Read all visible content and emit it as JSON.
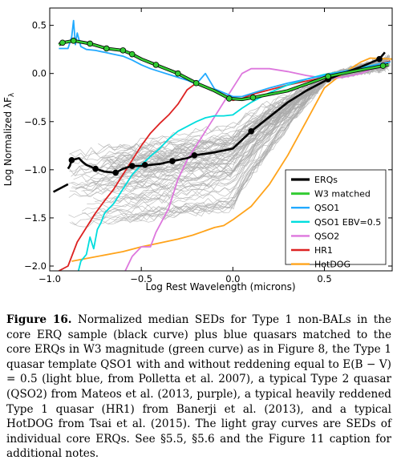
{
  "chart_data": {
    "type": "line",
    "title": "",
    "xlabel": "Log Rest Wavelength (microns)",
    "ylabel": "Log Normalized λF_λ",
    "xlim": [
      -1.0,
      0.87
    ],
    "ylim": [
      -2.05,
      0.68
    ],
    "xticks": [
      -1.0,
      -0.5,
      0.0,
      0.5
    ],
    "xtick_labels": [
      "−1.0",
      "−0.5",
      "0.0",
      "0.5"
    ],
    "yticks": [
      0.5,
      0.0,
      -0.5,
      -1.0,
      -1.5,
      -2.0
    ],
    "ytick_labels": [
      "0.5",
      "0.0",
      "−0.5",
      "−1.0",
      "−1.5",
      "−2.0"
    ],
    "legend_position": "lower-right",
    "grid": false,
    "series": [
      {
        "name": "ERQs",
        "color": "#000000",
        "width": 2.6,
        "markers": [
          [
            -0.88,
            -0.9
          ],
          [
            -0.75,
            -0.99
          ],
          [
            -0.64,
            -1.03
          ],
          [
            -0.55,
            -0.96
          ],
          [
            -0.48,
            -0.95
          ],
          [
            -0.33,
            -0.91
          ],
          [
            -0.21,
            -0.85
          ],
          [
            0.1,
            -0.6
          ],
          [
            0.52,
            -0.06
          ],
          [
            0.8,
            0.15
          ]
        ],
        "x": [
          -0.9,
          -0.89,
          -0.88,
          -0.86,
          -0.84,
          -0.82,
          -0.8,
          -0.75,
          -0.7,
          -0.64,
          -0.6,
          -0.55,
          -0.5,
          -0.45,
          -0.4,
          -0.33,
          -0.25,
          -0.21,
          -0.1,
          0.0,
          0.1,
          0.2,
          0.3,
          0.4,
          0.52,
          0.6,
          0.7,
          0.8,
          0.83
        ],
        "y": [
          -0.99,
          -0.96,
          -0.9,
          -0.89,
          -0.88,
          -0.92,
          -0.95,
          -0.99,
          -1.02,
          -1.03,
          -0.99,
          -0.96,
          -0.96,
          -0.95,
          -0.94,
          -0.91,
          -0.88,
          -0.85,
          -0.82,
          -0.78,
          -0.6,
          -0.45,
          -0.3,
          -0.18,
          -0.06,
          0.0,
          0.07,
          0.15,
          0.22
        ]
      },
      {
        "name": "W3 matched",
        "color": "#33cc33",
        "width": 2.4,
        "markers": [
          [
            -0.93,
            0.32
          ],
          [
            -0.87,
            0.34
          ],
          [
            -0.78,
            0.31
          ],
          [
            -0.69,
            0.26
          ],
          [
            -0.6,
            0.24
          ],
          [
            -0.55,
            0.2
          ],
          [
            -0.42,
            0.09
          ],
          [
            -0.3,
            0.0
          ],
          [
            -0.2,
            -0.1
          ],
          [
            -0.02,
            -0.26
          ],
          [
            0.11,
            -0.25
          ],
          [
            0.52,
            -0.03
          ],
          [
            0.82,
            0.08
          ]
        ],
        "x": [
          -0.95,
          -0.93,
          -0.87,
          -0.78,
          -0.69,
          -0.6,
          -0.55,
          -0.5,
          -0.42,
          -0.3,
          -0.2,
          -0.1,
          -0.02,
          0.05,
          0.11,
          0.3,
          0.52,
          0.65,
          0.82,
          0.85
        ],
        "y": [
          0.3,
          0.32,
          0.34,
          0.31,
          0.26,
          0.24,
          0.2,
          0.15,
          0.09,
          0.0,
          -0.1,
          -0.18,
          -0.26,
          -0.27,
          -0.25,
          -0.18,
          -0.03,
          0.02,
          0.08,
          0.09
        ]
      },
      {
        "name": "QSO1",
        "color": "#22aaff",
        "width": 1.8,
        "x": [
          -0.95,
          -0.9,
          -0.88,
          -0.87,
          -0.86,
          -0.85,
          -0.83,
          -0.8,
          -0.75,
          -0.7,
          -0.65,
          -0.6,
          -0.55,
          -0.5,
          -0.45,
          -0.4,
          -0.35,
          -0.3,
          -0.25,
          -0.2,
          -0.15,
          -0.1,
          -0.05,
          0.0,
          0.05,
          0.1,
          0.2,
          0.3,
          0.4,
          0.5,
          0.6,
          0.7,
          0.8,
          0.86
        ],
        "y": [
          0.26,
          0.26,
          0.38,
          0.55,
          0.3,
          0.42,
          0.28,
          0.25,
          0.24,
          0.22,
          0.2,
          0.18,
          0.14,
          0.09,
          0.05,
          0.02,
          -0.01,
          -0.04,
          -0.07,
          -0.11,
          0.0,
          -0.16,
          -0.2,
          -0.24,
          -0.24,
          -0.21,
          -0.15,
          -0.1,
          -0.06,
          -0.02,
          0.02,
          0.05,
          0.1,
          0.12
        ]
      },
      {
        "name": "QSO1 EBV=0.5",
        "color": "#00dddd",
        "width": 1.8,
        "x": [
          -0.85,
          -0.83,
          -0.8,
          -0.78,
          -0.76,
          -0.74,
          -0.72,
          -0.7,
          -0.65,
          -0.6,
          -0.55,
          -0.5,
          -0.45,
          -0.4,
          -0.35,
          -0.3,
          -0.25,
          -0.2,
          -0.15,
          -0.1,
          -0.05,
          0.0,
          0.05,
          0.1,
          0.2,
          0.3,
          0.4,
          0.5,
          0.6,
          0.7,
          0.8,
          0.86
        ],
        "y": [
          -2.1,
          -1.95,
          -1.88,
          -1.7,
          -1.82,
          -1.62,
          -1.55,
          -1.45,
          -1.35,
          -1.2,
          -1.05,
          -0.95,
          -0.86,
          -0.78,
          -0.68,
          -0.6,
          -0.55,
          -0.5,
          -0.46,
          -0.44,
          -0.44,
          -0.43,
          -0.36,
          -0.3,
          -0.2,
          -0.12,
          -0.06,
          -0.01,
          0.02,
          0.06,
          0.1,
          0.12
        ]
      },
      {
        "name": "QSO2",
        "color": "#dd77dd",
        "width": 1.8,
        "x": [
          -0.6,
          -0.55,
          -0.5,
          -0.45,
          -0.42,
          -0.35,
          -0.3,
          -0.25,
          -0.2,
          -0.15,
          -0.1,
          -0.05,
          0.0,
          0.05,
          0.1,
          0.2,
          0.3,
          0.4,
          0.5,
          0.6,
          0.7,
          0.75
        ],
        "y": [
          -2.1,
          -1.9,
          -1.8,
          -1.8,
          -1.65,
          -1.4,
          -1.1,
          -0.9,
          -0.75,
          -0.6,
          -0.45,
          -0.3,
          -0.15,
          0.0,
          0.05,
          0.05,
          0.02,
          -0.02,
          -0.05,
          -0.04,
          0.0,
          0.04
        ]
      },
      {
        "name": "HR1",
        "color": "#dd2222",
        "width": 1.8,
        "x": [
          -0.95,
          -0.9,
          -0.85,
          -0.8,
          -0.75,
          -0.7,
          -0.65,
          -0.6,
          -0.55,
          -0.5,
          -0.45,
          -0.4,
          -0.35,
          -0.3,
          -0.25,
          -0.2,
          -0.15,
          -0.1,
          -0.05,
          0.0,
          0.05,
          0.1,
          0.2,
          0.3,
          0.4,
          0.5,
          0.6,
          0.7,
          0.8,
          0.86
        ],
        "y": [
          -2.05,
          -2.0,
          -1.75,
          -1.6,
          -1.45,
          -1.32,
          -1.2,
          -1.05,
          -0.9,
          -0.75,
          -0.62,
          -0.52,
          -0.43,
          -0.32,
          -0.17,
          -0.1,
          -0.14,
          -0.18,
          -0.22,
          -0.28,
          -0.26,
          -0.22,
          -0.17,
          -0.12,
          -0.08,
          -0.04,
          0.0,
          0.04,
          0.1,
          0.13
        ]
      },
      {
        "name": "HotDOG",
        "color": "#ffa31a",
        "width": 1.8,
        "x": [
          -0.88,
          -0.6,
          -0.5,
          -0.4,
          -0.3,
          -0.22,
          -0.1,
          -0.05,
          0.0,
          0.1,
          0.2,
          0.3,
          0.4,
          0.5,
          0.6,
          0.7,
          0.75,
          0.87
        ],
        "y": [
          -1.95,
          -1.85,
          -1.8,
          -1.76,
          -1.72,
          -1.68,
          -1.6,
          -1.58,
          -1.52,
          -1.38,
          -1.15,
          -0.85,
          -0.5,
          -0.15,
          0.0,
          0.12,
          0.16,
          0.15
        ]
      }
    ],
    "gray_curves": {
      "name": "",
      "color": "#aaaaaa",
      "count": 80
    }
  },
  "caption": {
    "label": "Figure 16.",
    "text": " Normalized median SEDs for Type 1 non-BALs in the core ERQ sample (black curve) plus blue quasars matched to the core ERQs in W3 magnitude (green curve) as in Figure 8, the Type 1 quasar template QSO1 with and without reddening equal to E(B − V) = 0.5 (light blue, from Polletta et al. 2007), a typical Type 2 quasar (QSO2) from Mateos et al. (2013, purple), a typical heavily reddened Type 1 quasar (HR1) from Banerji et al. (2013), and a typical HotDOG from Tsai et al. (2015). The light gray curves are SEDs of individual core ERQs. See §5.5, §5.6 and the Figure 11 caption for additional notes."
  }
}
